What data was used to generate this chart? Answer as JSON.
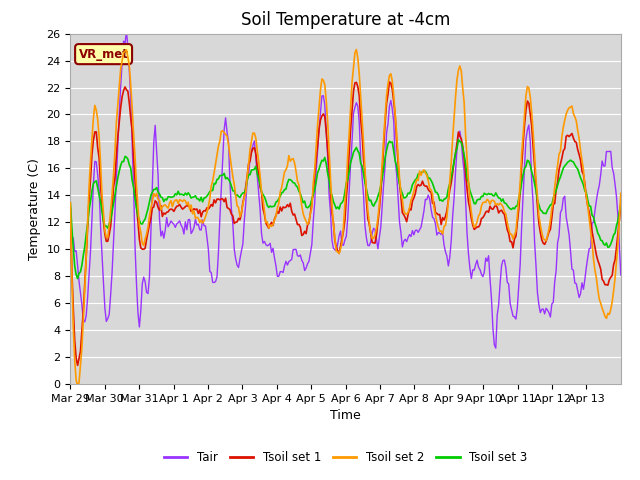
{
  "title": "Soil Temperature at -4cm",
  "xlabel": "Time",
  "ylabel": "Temperature (C)",
  "ylim": [
    0,
    26
  ],
  "yticks": [
    0,
    2,
    4,
    6,
    8,
    10,
    12,
    14,
    16,
    18,
    20,
    22,
    24,
    26
  ],
  "plot_bg_color": "#d8d8d8",
  "fig_bg_color": "#ffffff",
  "grid_color": "#ffffff",
  "annotation_text": "VR_met",
  "annotation_bg": "#ffffaa",
  "annotation_border": "#8B0000",
  "colors": {
    "Tair": "#9933ff",
    "Tsoil set 1": "#dd1100",
    "Tsoil set 2": "#ff9900",
    "Tsoil set 3": "#00cc00"
  },
  "x_tick_labels": [
    "Mar 29",
    "Mar 30",
    "Mar 31",
    "Apr 1",
    "Apr 2",
    "Apr 3",
    "Apr 4",
    "Apr 5",
    "Apr 6",
    "Apr 7",
    "Apr 8",
    "Apr 9",
    "Apr 10",
    "Apr 11",
    "Apr 12",
    "Apr 13"
  ],
  "title_fontsize": 12,
  "axis_fontsize": 9,
  "tick_fontsize": 8
}
